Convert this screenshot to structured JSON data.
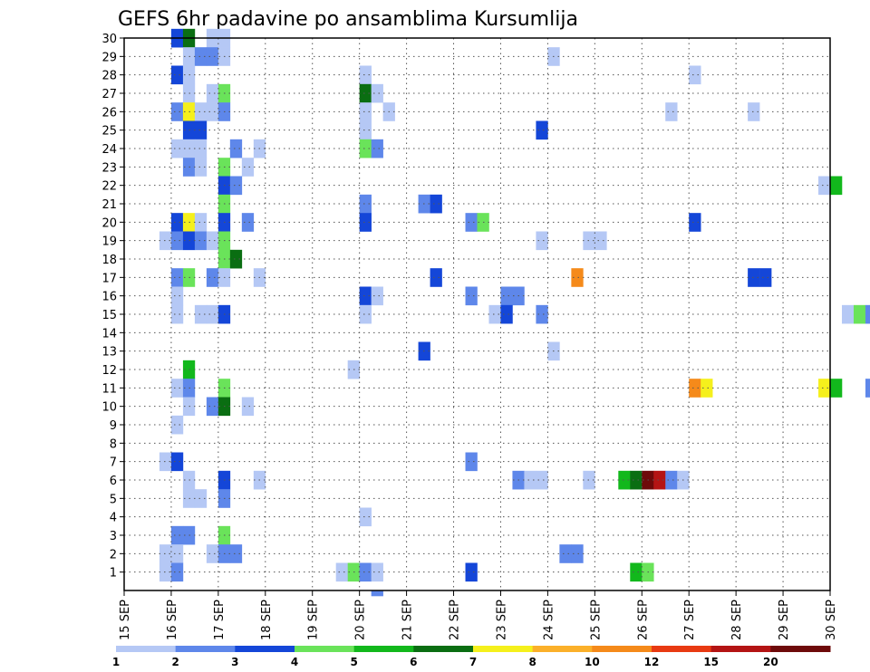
{
  "chart_data": {
    "type": "heatmap",
    "title": "GEFS 6hr padavine po ansamblima Kursumlija",
    "y_categories": [
      "1",
      "2",
      "3",
      "4",
      "5",
      "6",
      "7",
      "8",
      "9",
      "10",
      "11",
      "12",
      "13",
      "14",
      "15",
      "16",
      "17",
      "18",
      "19",
      "20",
      "21",
      "22",
      "23",
      "24",
      "25",
      "26",
      "27",
      "28",
      "29",
      "30"
    ],
    "x_tick_labels": [
      "15 SEP",
      "16 SEP",
      "17 SEP",
      "18 SEP",
      "19 SEP",
      "20 SEP",
      "21 SEP",
      "22 SEP",
      "23 SEP",
      "24 SEP",
      "25 SEP",
      "26 SEP",
      "27 SEP",
      "28 SEP",
      "29 SEP",
      "30 SEP"
    ],
    "x_step": "6 hr",
    "grid": true,
    "legend": {
      "position": "bottom",
      "thresholds": [
        "1",
        "2",
        "3",
        "4",
        "5",
        "6",
        "7",
        "8",
        "10",
        "12",
        "15",
        "20"
      ],
      "colors": [
        "#b5c8f5",
        "#5e87ea",
        "#1446d8",
        "#6ae35a",
        "#12b81c",
        "#0a6e12",
        "#f5f01c",
        "#fbb02a",
        "#f58a1a",
        "#e83a12",
        "#b41414",
        "#6e0a0a"
      ]
    },
    "cells": [
      [
        16.0,
        30,
        2
      ],
      [
        16.25,
        30,
        5
      ],
      [
        16.75,
        30,
        0
      ],
      [
        17.0,
        30,
        0
      ],
      [
        16.25,
        29,
        0
      ],
      [
        16.5,
        29,
        1
      ],
      [
        16.75,
        29,
        1
      ],
      [
        17.0,
        29,
        0
      ],
      [
        24.0,
        29,
        0
      ],
      [
        16.0,
        28,
        2
      ],
      [
        16.25,
        28,
        0
      ],
      [
        20.0,
        28,
        0
      ],
      [
        27.0,
        28,
        0
      ],
      [
        16.25,
        27,
        0
      ],
      [
        16.75,
        27,
        0
      ],
      [
        17.0,
        27,
        3
      ],
      [
        20.0,
        27,
        5
      ],
      [
        20.25,
        27,
        0
      ],
      [
        16.0,
        26,
        1
      ],
      [
        16.25,
        26,
        6
      ],
      [
        16.5,
        26,
        0
      ],
      [
        16.75,
        26,
        0
      ],
      [
        17.0,
        26,
        1
      ],
      [
        20.0,
        26,
        0
      ],
      [
        20.5,
        26,
        0
      ],
      [
        26.5,
        26,
        0
      ],
      [
        28.25,
        26,
        0
      ],
      [
        16.25,
        25,
        2
      ],
      [
        16.5,
        25,
        2
      ],
      [
        20.0,
        25,
        0
      ],
      [
        23.75,
        25,
        2
      ],
      [
        16.0,
        24,
        0
      ],
      [
        16.25,
        24,
        0
      ],
      [
        16.5,
        24,
        0
      ],
      [
        17.25,
        24,
        1
      ],
      [
        17.75,
        24,
        0
      ],
      [
        20.0,
        24,
        3
      ],
      [
        20.25,
        24,
        1
      ],
      [
        16.25,
        23,
        1
      ],
      [
        16.5,
        23,
        0
      ],
      [
        17.0,
        23,
        3
      ],
      [
        17.5,
        23,
        0
      ],
      [
        17.0,
        22,
        2
      ],
      [
        17.25,
        22,
        1
      ],
      [
        29.75,
        22,
        0
      ],
      [
        30.0,
        22,
        4
      ],
      [
        17.0,
        21,
        3
      ],
      [
        20.0,
        21,
        1
      ],
      [
        21.25,
        21,
        1
      ],
      [
        21.5,
        21,
        2
      ],
      [
        16.0,
        20,
        2
      ],
      [
        16.25,
        20,
        6
      ],
      [
        16.5,
        20,
        0
      ],
      [
        17.0,
        20,
        2
      ],
      [
        17.5,
        20,
        1
      ],
      [
        20.0,
        20,
        2
      ],
      [
        22.25,
        20,
        1
      ],
      [
        22.5,
        20,
        3
      ],
      [
        27.0,
        20,
        2
      ],
      [
        15.75,
        19,
        0
      ],
      [
        16.0,
        19,
        1
      ],
      [
        16.25,
        19,
        2
      ],
      [
        16.5,
        19,
        1
      ],
      [
        16.75,
        19,
        0
      ],
      [
        17.0,
        19,
        3
      ],
      [
        23.75,
        19,
        0
      ],
      [
        24.75,
        19,
        0
      ],
      [
        25.0,
        19,
        0
      ],
      [
        17.0,
        18,
        3
      ],
      [
        17.25,
        18,
        5
      ],
      [
        16.0,
        17,
        1
      ],
      [
        16.25,
        17,
        3
      ],
      [
        16.75,
        17,
        1
      ],
      [
        17.0,
        17,
        0
      ],
      [
        17.75,
        17,
        0
      ],
      [
        21.5,
        17,
        2
      ],
      [
        24.5,
        17,
        8
      ],
      [
        28.25,
        17,
        2
      ],
      [
        28.5,
        17,
        2
      ],
      [
        16.0,
        16,
        0
      ],
      [
        20.0,
        16,
        2
      ],
      [
        20.25,
        16,
        0
      ],
      [
        22.25,
        16,
        1
      ],
      [
        23.0,
        16,
        1
      ],
      [
        23.25,
        16,
        1
      ],
      [
        16.0,
        15,
        0
      ],
      [
        16.5,
        15,
        0
      ],
      [
        16.75,
        15,
        0
      ],
      [
        17.0,
        15,
        2
      ],
      [
        20.0,
        15,
        0
      ],
      [
        22.75,
        15,
        0
      ],
      [
        23.0,
        15,
        2
      ],
      [
        23.75,
        15,
        1
      ],
      [
        30.25,
        15,
        0
      ],
      [
        30.5,
        15,
        3
      ],
      [
        30.75,
        15,
        1
      ],
      [
        21.25,
        13,
        2
      ],
      [
        24.0,
        13,
        0
      ],
      [
        16.25,
        12,
        4
      ],
      [
        19.75,
        12,
        0
      ],
      [
        16.0,
        11,
        0
      ],
      [
        16.25,
        11,
        1
      ],
      [
        17.0,
        11,
        3
      ],
      [
        27.0,
        11,
        8
      ],
      [
        27.25,
        11,
        6
      ],
      [
        29.75,
        11,
        6
      ],
      [
        30.0,
        11,
        4
      ],
      [
        30.75,
        11,
        1
      ],
      [
        16.25,
        10,
        0
      ],
      [
        16.75,
        10,
        1
      ],
      [
        17.0,
        10,
        5
      ],
      [
        17.5,
        10,
        0
      ],
      [
        16.0,
        9,
        0
      ],
      [
        15.75,
        7,
        0
      ],
      [
        16.0,
        7,
        2
      ],
      [
        22.25,
        7,
        1
      ],
      [
        16.25,
        6,
        0
      ],
      [
        17.0,
        6,
        2
      ],
      [
        17.75,
        6,
        0
      ],
      [
        23.25,
        6,
        1
      ],
      [
        23.5,
        6,
        0
      ],
      [
        23.75,
        6,
        0
      ],
      [
        24.75,
        6,
        0
      ],
      [
        25.5,
        6,
        4
      ],
      [
        25.75,
        6,
        5
      ],
      [
        26.0,
        6,
        11
      ],
      [
        26.25,
        6,
        10
      ],
      [
        26.5,
        6,
        1
      ],
      [
        26.75,
        6,
        0
      ],
      [
        16.25,
        5,
        0
      ],
      [
        16.5,
        5,
        0
      ],
      [
        17.0,
        5,
        1
      ],
      [
        20.0,
        4,
        0
      ],
      [
        16.0,
        3,
        1
      ],
      [
        16.25,
        3,
        1
      ],
      [
        17.0,
        3,
        3
      ],
      [
        15.75,
        2,
        0
      ],
      [
        16.0,
        2,
        0
      ],
      [
        16.75,
        2,
        0
      ],
      [
        17.0,
        2,
        1
      ],
      [
        17.25,
        2,
        1
      ],
      [
        24.25,
        2,
        1
      ],
      [
        24.5,
        2,
        1
      ],
      [
        15.75,
        1,
        0
      ],
      [
        16.0,
        1,
        1
      ],
      [
        19.5,
        1,
        0
      ],
      [
        19.75,
        1,
        3
      ],
      [
        20.0,
        1,
        1
      ],
      [
        20.25,
        1,
        0
      ],
      [
        22.25,
        1,
        2
      ],
      [
        25.75,
        1,
        4
      ],
      [
        26.0,
        1,
        3
      ],
      [
        20.25,
        0,
        1
      ]
    ]
  }
}
